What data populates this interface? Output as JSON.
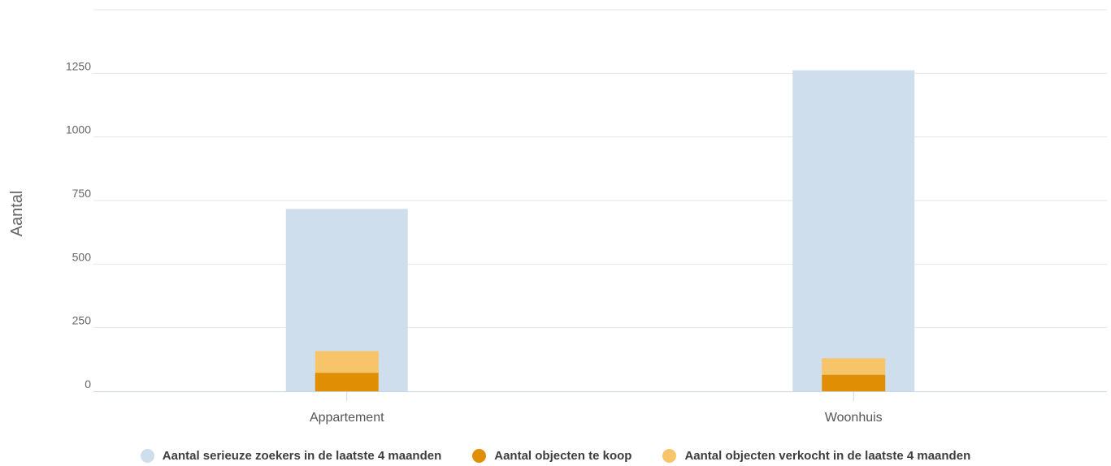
{
  "chart_data": {
    "type": "bar",
    "stacking": "grouped-stacked",
    "ylabel": "Aantal",
    "xlabel": "",
    "categories": [
      "Appartement",
      "Woonhuis"
    ],
    "ylim": [
      0,
      1500
    ],
    "yticks": [
      0,
      250,
      500,
      750,
      1000,
      1250
    ],
    "grid": true,
    "legend_position": "bottom-center",
    "series": [
      {
        "name": "Aantal serieuze zoekers in de laatste 4 maanden",
        "stack": "zoekers",
        "color": "#cfdeec",
        "values": [
          717,
          1262
        ]
      },
      {
        "name": "Aantal objecten te koop",
        "stack": "objecten",
        "color": "#e08f05",
        "values": [
          73,
          65
        ]
      },
      {
        "name": "Aantal objecten verkocht in de laatste 4 maanden",
        "stack": "objecten",
        "color": "#f7c469",
        "values": [
          85,
          65
        ]
      }
    ]
  }
}
